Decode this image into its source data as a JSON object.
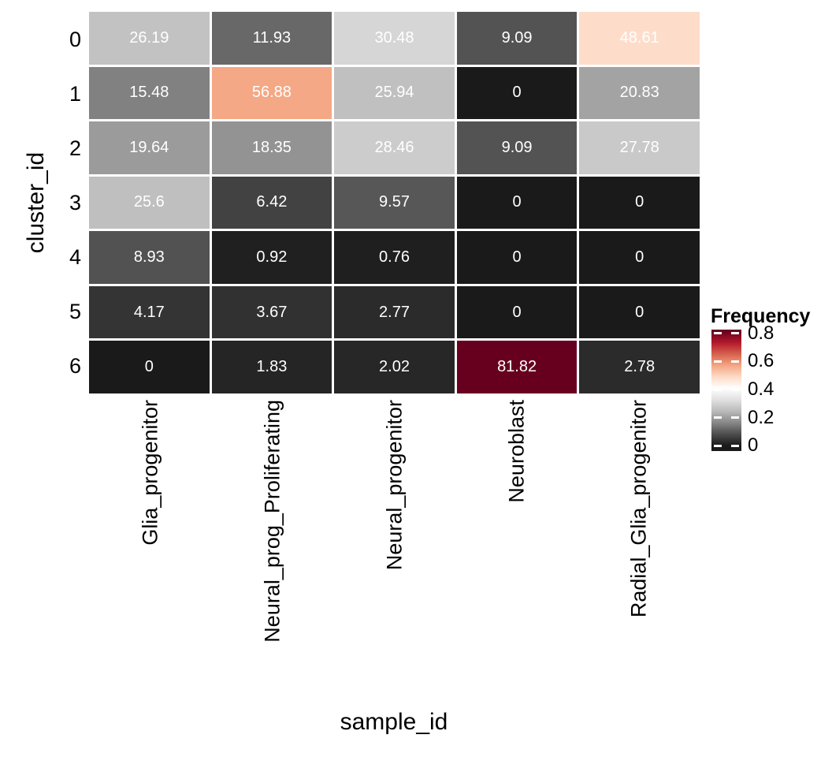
{
  "chart_data": {
    "type": "heatmap",
    "title": "",
    "xlabel": "sample_id",
    "ylabel": "cluster_id",
    "x_categories": [
      "Glia_progenitor",
      "Neural_prog_Proliferating",
      "Neural_progenitor",
      "Neuroblast",
      "Radial_Glia_progenitor"
    ],
    "y_categories": [
      "0",
      "1",
      "2",
      "3",
      "4",
      "5",
      "6"
    ],
    "values_percent": [
      [
        26.19,
        11.93,
        30.48,
        9.09,
        48.61
      ],
      [
        15.48,
        56.88,
        25.94,
        0,
        20.83
      ],
      [
        19.64,
        18.35,
        28.46,
        9.09,
        27.78
      ],
      [
        25.6,
        6.42,
        9.57,
        0,
        0
      ],
      [
        8.93,
        0.92,
        0.76,
        0,
        0
      ],
      [
        4.17,
        3.67,
        2.77,
        0,
        0
      ],
      [
        0,
        1.83,
        2.02,
        81.82,
        2.78
      ]
    ],
    "cell_label_color": "#FFFFFF",
    "grid_gap_color": "#FFFFFF",
    "legend": {
      "title": "Frequency",
      "tick_labels": [
        "0.8",
        "0.6",
        "0.4",
        "0.2",
        "0"
      ],
      "tick_values": [
        0.8,
        0.6,
        0.4,
        0.2,
        0
      ],
      "domain": [
        0,
        0.8182
      ]
    },
    "palette_low_to_high": [
      "#1A1A1A",
      "#4D4D4D",
      "#878787",
      "#BABABA",
      "#E0E0E0",
      "#FFFFFF",
      "#FDDBC7",
      "#F4A582",
      "#D6604D",
      "#B2182B",
      "#67001F"
    ]
  }
}
